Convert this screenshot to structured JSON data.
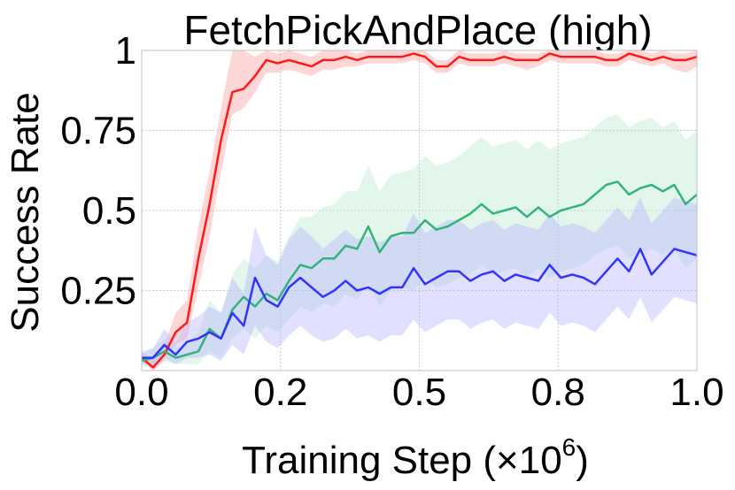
{
  "chart_data": {
    "type": "line",
    "title": "FetchPickAndPlace (high)",
    "xlabel": "Training Step (×10",
    "xlabel_exponent": "6",
    "xlabel_close": ")",
    "ylabel": "Success Rate",
    "xlim": [
      0,
      1.0
    ],
    "ylim": [
      0,
      1
    ],
    "x_ticks": [
      0.0,
      0.25,
      0.5,
      0.75,
      1.0
    ],
    "x_tick_labels": [
      "0.0",
      "0.2",
      "0.5",
      "0.8",
      "1.0"
    ],
    "y_ticks": [
      0.25,
      0.5,
      0.75,
      1.0
    ],
    "y_tick_labels": [
      "0.25",
      "0.5",
      "0.75",
      "1"
    ],
    "grid": true,
    "x": [
      0.0,
      0.0204,
      0.0408,
      0.0612,
      0.0816,
      0.102,
      0.1224,
      0.1429,
      0.1633,
      0.1837,
      0.2041,
      0.2245,
      0.2449,
      0.2653,
      0.2857,
      0.3061,
      0.3265,
      0.3469,
      0.3673,
      0.3878,
      0.4082,
      0.4286,
      0.449,
      0.4694,
      0.4898,
      0.5102,
      0.5306,
      0.551,
      0.5714,
      0.5918,
      0.6122,
      0.6327,
      0.6531,
      0.6735,
      0.6939,
      0.7143,
      0.7347,
      0.7551,
      0.7755,
      0.7959,
      0.8163,
      0.8367,
      0.8571,
      0.8776,
      0.898,
      0.9184,
      0.9388,
      0.9592,
      0.9796,
      1.0
    ],
    "series": [
      {
        "color": "#ff1a1a",
        "band_color": "#ff9999",
        "mean": [
          0.04,
          0.01,
          0.05,
          0.12,
          0.15,
          0.35,
          0.52,
          0.72,
          0.87,
          0.88,
          0.92,
          0.97,
          0.96,
          0.97,
          0.96,
          0.95,
          0.97,
          0.97,
          0.98,
          0.97,
          0.98,
          0.98,
          0.98,
          0.98,
          0.99,
          0.98,
          0.95,
          0.95,
          0.98,
          0.97,
          0.97,
          0.97,
          0.98,
          0.97,
          0.97,
          0.97,
          0.99,
          0.98,
          0.98,
          0.98,
          0.98,
          0.97,
          0.97,
          0.99,
          0.98,
          0.97,
          0.98,
          0.97,
          0.97,
          0.98
        ],
        "lower": [
          0.03,
          0.0,
          0.03,
          0.08,
          0.1,
          0.26,
          0.42,
          0.62,
          0.8,
          0.82,
          0.87,
          0.93,
          0.93,
          0.94,
          0.93,
          0.92,
          0.94,
          0.94,
          0.95,
          0.95,
          0.96,
          0.96,
          0.96,
          0.96,
          0.97,
          0.96,
          0.93,
          0.93,
          0.96,
          0.95,
          0.95,
          0.95,
          0.96,
          0.95,
          0.94,
          0.95,
          0.97,
          0.96,
          0.96,
          0.96,
          0.96,
          0.95,
          0.95,
          0.97,
          0.96,
          0.95,
          0.96,
          0.94,
          0.93,
          0.95
        ],
        "upper": [
          0.06,
          0.03,
          0.08,
          0.18,
          0.22,
          0.45,
          0.62,
          0.82,
          1.0,
          1.0,
          0.98,
          1.0,
          0.99,
          1.0,
          0.99,
          0.98,
          1.0,
          1.0,
          1.0,
          0.99,
          1.0,
          1.0,
          1.0,
          1.0,
          1.0,
          1.0,
          0.97,
          0.97,
          1.0,
          0.99,
          0.99,
          0.99,
          1.0,
          0.99,
          0.99,
          0.99,
          1.0,
          1.0,
          1.0,
          1.0,
          1.0,
          0.99,
          0.99,
          1.0,
          1.0,
          0.99,
          1.0,
          0.99,
          0.99,
          1.0
        ]
      },
      {
        "color": "#33b37a",
        "band_color": "#b8e8d0",
        "mean": [
          0.03,
          0.04,
          0.06,
          0.04,
          0.05,
          0.06,
          0.13,
          0.1,
          0.19,
          0.23,
          0.2,
          0.24,
          0.22,
          0.28,
          0.33,
          0.32,
          0.35,
          0.35,
          0.39,
          0.38,
          0.45,
          0.37,
          0.42,
          0.43,
          0.43,
          0.47,
          0.44,
          0.45,
          0.47,
          0.49,
          0.52,
          0.49,
          0.5,
          0.51,
          0.48,
          0.51,
          0.48,
          0.5,
          0.51,
          0.52,
          0.55,
          0.58,
          0.59,
          0.55,
          0.57,
          0.58,
          0.56,
          0.58,
          0.52,
          0.55
        ],
        "lower": [
          0.01,
          0.02,
          0.03,
          0.02,
          0.02,
          0.02,
          0.06,
          0.04,
          0.1,
          0.13,
          0.1,
          0.14,
          0.12,
          0.16,
          0.2,
          0.18,
          0.21,
          0.2,
          0.24,
          0.22,
          0.28,
          0.2,
          0.25,
          0.26,
          0.25,
          0.29,
          0.26,
          0.27,
          0.29,
          0.3,
          0.33,
          0.3,
          0.31,
          0.32,
          0.29,
          0.32,
          0.29,
          0.31,
          0.32,
          0.33,
          0.36,
          0.38,
          0.39,
          0.35,
          0.37,
          0.38,
          0.36,
          0.38,
          0.32,
          0.35
        ],
        "upper": [
          0.05,
          0.07,
          0.1,
          0.07,
          0.09,
          0.12,
          0.22,
          0.18,
          0.3,
          0.35,
          0.32,
          0.36,
          0.34,
          0.42,
          0.48,
          0.48,
          0.51,
          0.52,
          0.56,
          0.56,
          0.64,
          0.56,
          0.61,
          0.62,
          0.63,
          0.67,
          0.64,
          0.65,
          0.67,
          0.7,
          0.73,
          0.7,
          0.71,
          0.72,
          0.69,
          0.72,
          0.69,
          0.71,
          0.72,
          0.73,
          0.76,
          0.79,
          0.8,
          0.76,
          0.78,
          0.79,
          0.76,
          0.78,
          0.72,
          0.75
        ]
      },
      {
        "color": "#3333ff",
        "band_color": "#b3b3ff",
        "mean": [
          0.04,
          0.04,
          0.08,
          0.05,
          0.09,
          0.1,
          0.12,
          0.1,
          0.18,
          0.14,
          0.29,
          0.22,
          0.2,
          0.26,
          0.29,
          0.26,
          0.23,
          0.25,
          0.28,
          0.25,
          0.26,
          0.24,
          0.26,
          0.26,
          0.32,
          0.27,
          0.29,
          0.31,
          0.31,
          0.28,
          0.3,
          0.31,
          0.28,
          0.3,
          0.29,
          0.28,
          0.33,
          0.29,
          0.3,
          0.29,
          0.27,
          0.31,
          0.35,
          0.31,
          0.38,
          0.3,
          0.34,
          0.38,
          0.37,
          0.36
        ],
        "lower": [
          0.02,
          0.02,
          0.04,
          0.02,
          0.04,
          0.04,
          0.05,
          0.03,
          0.08,
          0.05,
          0.14,
          0.09,
          0.07,
          0.11,
          0.14,
          0.11,
          0.09,
          0.1,
          0.13,
          0.1,
          0.11,
          0.09,
          0.11,
          0.11,
          0.16,
          0.12,
          0.14,
          0.16,
          0.16,
          0.13,
          0.15,
          0.16,
          0.13,
          0.15,
          0.14,
          0.13,
          0.18,
          0.14,
          0.15,
          0.14,
          0.12,
          0.16,
          0.2,
          0.16,
          0.23,
          0.15,
          0.19,
          0.23,
          0.22,
          0.21
        ],
        "upper": [
          0.06,
          0.07,
          0.13,
          0.09,
          0.15,
          0.17,
          0.2,
          0.18,
          0.29,
          0.24,
          0.45,
          0.36,
          0.33,
          0.41,
          0.45,
          0.42,
          0.38,
          0.41,
          0.44,
          0.41,
          0.42,
          0.4,
          0.42,
          0.42,
          0.49,
          0.43,
          0.45,
          0.47,
          0.47,
          0.44,
          0.46,
          0.47,
          0.44,
          0.46,
          0.45,
          0.44,
          0.49,
          0.45,
          0.46,
          0.45,
          0.43,
          0.47,
          0.51,
          0.47,
          0.54,
          0.46,
          0.5,
          0.54,
          0.53,
          0.52
        ]
      }
    ]
  }
}
